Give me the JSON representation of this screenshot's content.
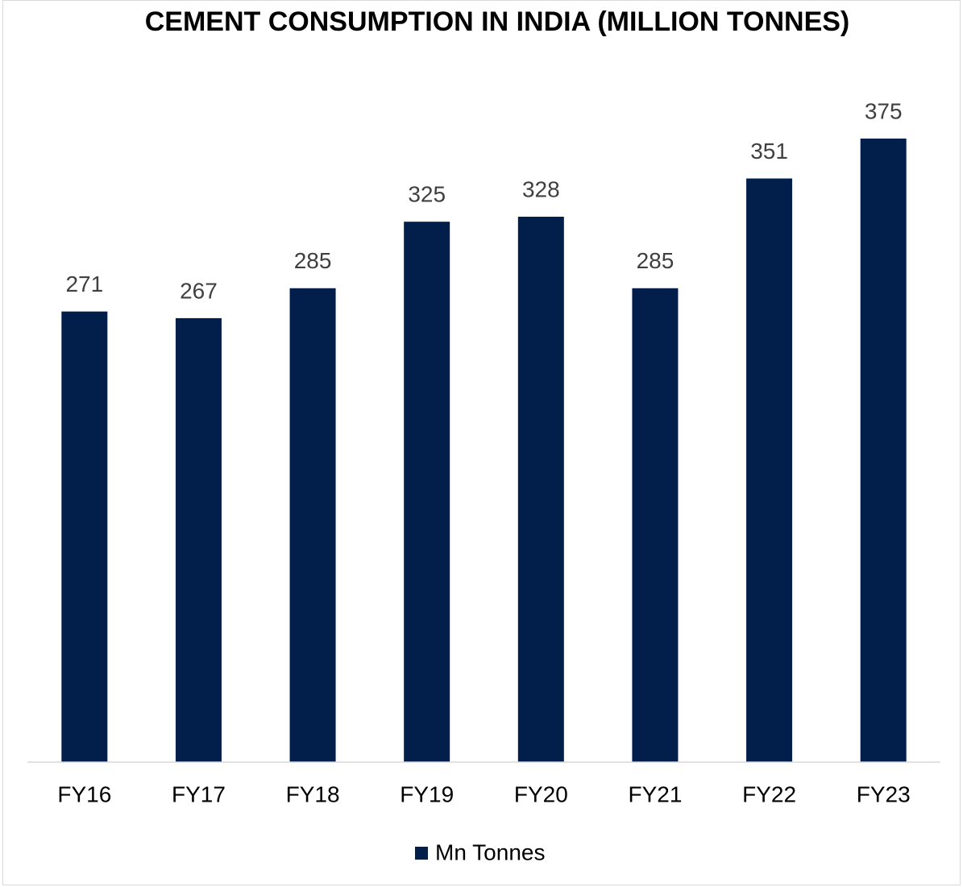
{
  "chart_data": {
    "type": "bar",
    "title": "CEMENT CONSUMPTION IN INDIA (MILLION TONNES)",
    "categories": [
      "FY16",
      "FY17",
      "FY18",
      "FY19",
      "FY20",
      "FY21",
      "FY22",
      "FY23"
    ],
    "series": [
      {
        "name": "Mn Tonnes",
        "color": "#021e4b",
        "values": [
          271,
          267,
          285,
          325,
          328,
          285,
          351,
          375
        ]
      }
    ],
    "ylim": [
      0,
      400
    ],
    "legend": "bottom"
  }
}
